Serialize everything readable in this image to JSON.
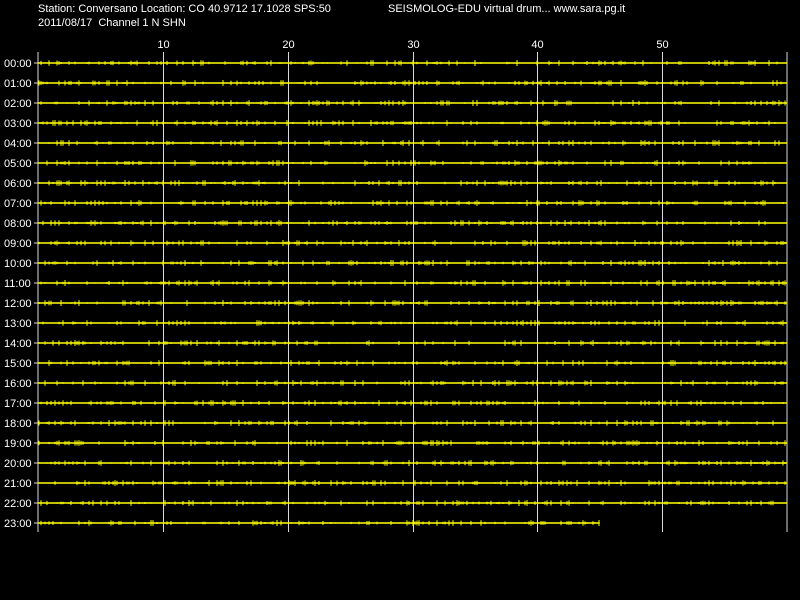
{
  "header": {
    "station_line": "Station: Conversano Location: CO 40.9712 17.1028 SPS:50",
    "title_line": "SEISMOLOG-EDU virtual drum... www.sara.pg.it",
    "date_line": "2011/08/17  Channel 1 N SHN"
  },
  "drum": {
    "minute_ticks": [
      "10",
      "20",
      "30",
      "40",
      "50"
    ],
    "hours": [
      "00:00",
      "01:00",
      "02:00",
      "03:00",
      "04:00",
      "05:00",
      "06:00",
      "07:00",
      "08:00",
      "09:00",
      "10:00",
      "11:00",
      "12:00",
      "13:00",
      "14:00",
      "15:00",
      "16:00",
      "17:00",
      "18:00",
      "19:00",
      "20:00",
      "21:00",
      "22:00",
      "23:00"
    ],
    "last_trace_end_minute": 45,
    "colors": {
      "background": "#000000",
      "trace": "#ffff00",
      "grid": "#d8d8d8",
      "text": "#ffffff"
    }
  }
}
